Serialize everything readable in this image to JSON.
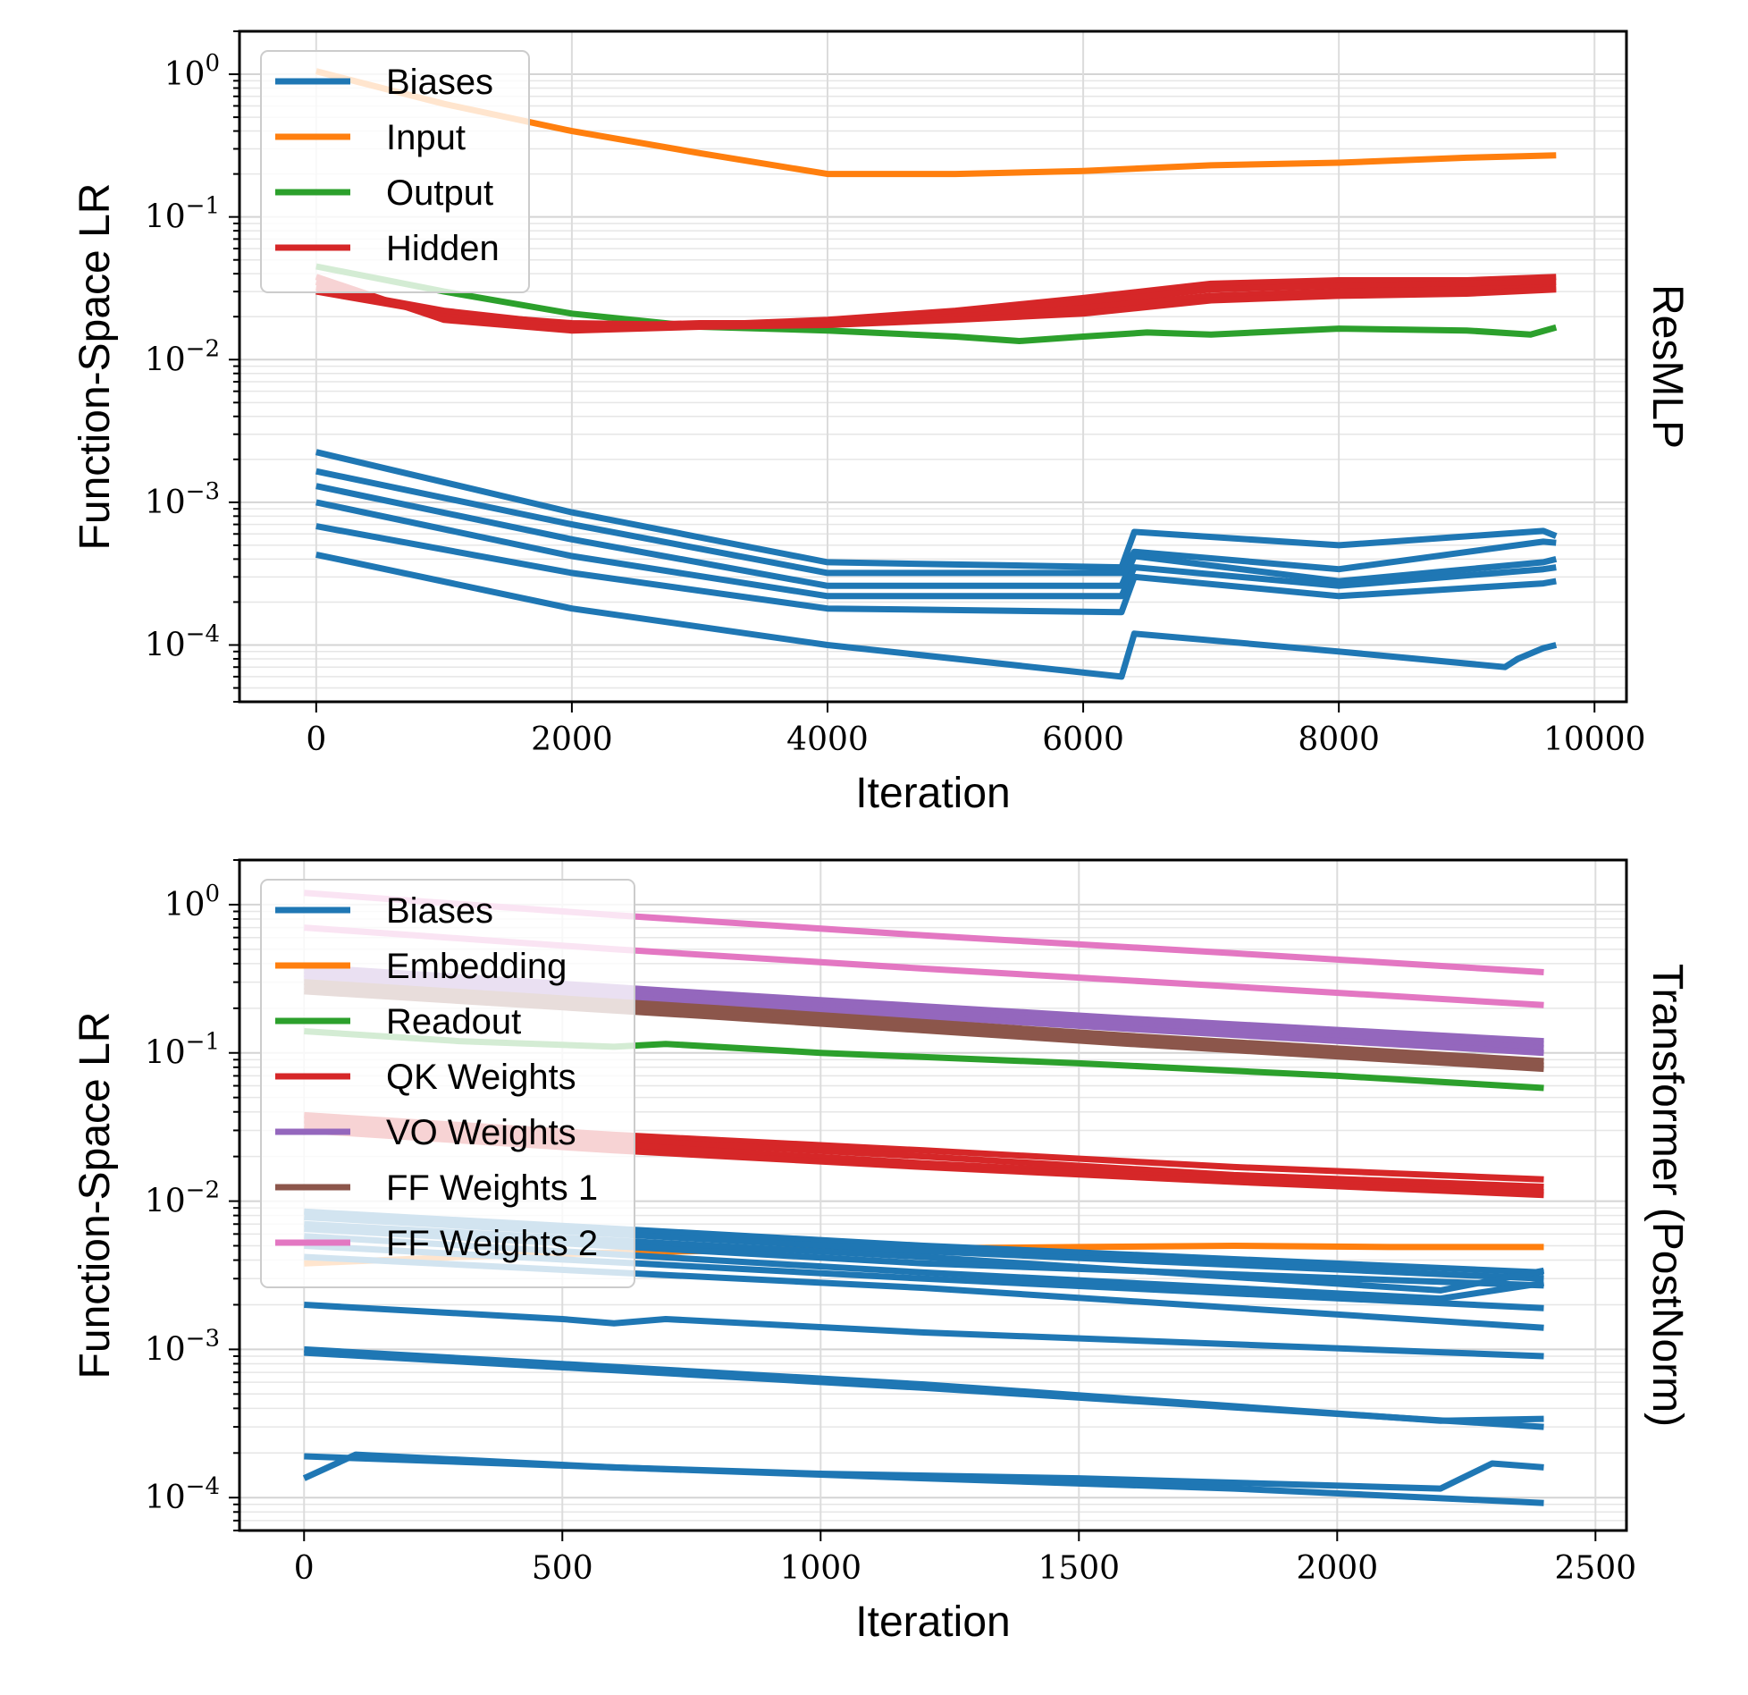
{
  "chart_data": [
    {
      "type": "line",
      "yscale": "log",
      "ylabel": "Function-Space LR",
      "xlabel": "Iteration",
      "side_label": "ResMLP",
      "xlim": [
        -600,
        10250
      ],
      "ylim": [
        4e-05,
        2.0
      ],
      "xticks": [
        0,
        2000,
        4000,
        6000,
        8000,
        10000
      ],
      "xtick_labels": [
        "0",
        "2000",
        "4000",
        "6000",
        "8000",
        "10000"
      ],
      "yticks": [
        1,
        0.1,
        0.01,
        0.001,
        0.0001
      ],
      "ytick_labels": [
        {
          "base": "10",
          "exp": "0"
        },
        {
          "base": "10",
          "exp": "−1"
        },
        {
          "base": "10",
          "exp": "−2"
        },
        {
          "base": "10",
          "exp": "−3"
        },
        {
          "base": "10",
          "exp": "−4"
        }
      ],
      "grid": true,
      "legend_position": "top-left",
      "legend": [
        {
          "label": "Biases",
          "color": "#1f77b4"
        },
        {
          "label": "Input",
          "color": "#ff7f0e"
        },
        {
          "label": "Output",
          "color": "#2ca02c"
        },
        {
          "label": "Hidden",
          "color": "#d62728"
        }
      ],
      "series": [
        {
          "name": "Biases",
          "color": "#1f77b4",
          "x": [
            0,
            2000,
            4000,
            6300,
            6400,
            8000,
            9600,
            9700
          ],
          "y": [
            0.00225,
            0.00085,
            0.00038,
            0.00035,
            0.00062,
            0.0005,
            0.00063,
            0.00058
          ]
        },
        {
          "name": "Biases",
          "color": "#1f77b4",
          "x": [
            0,
            2000,
            4000,
            6300,
            6400,
            8000,
            9600,
            9700
          ],
          "y": [
            0.00165,
            0.0007,
            0.00032,
            0.00032,
            0.00045,
            0.00034,
            0.00053,
            0.00052
          ]
        },
        {
          "name": "Biases",
          "color": "#1f77b4",
          "x": [
            0,
            2000,
            4000,
            6300,
            6400,
            8000,
            9600,
            9700
          ],
          "y": [
            0.0013,
            0.00055,
            0.00026,
            0.00026,
            0.00042,
            0.00028,
            0.00038,
            0.0004
          ]
        },
        {
          "name": "Biases",
          "color": "#1f77b4",
          "x": [
            0,
            2000,
            4000,
            6300,
            6400,
            8000,
            9600,
            9700
          ],
          "y": [
            0.001,
            0.00042,
            0.00022,
            0.00022,
            0.00035,
            0.00026,
            0.00034,
            0.00035
          ]
        },
        {
          "name": "Biases",
          "color": "#1f77b4",
          "x": [
            0,
            2000,
            4000,
            6300,
            6400,
            8000,
            9600,
            9700
          ],
          "y": [
            0.00068,
            0.00032,
            0.00018,
            0.00017,
            0.0003,
            0.00022,
            0.00027,
            0.00028
          ]
        },
        {
          "name": "Biases",
          "color": "#1f77b4",
          "x": [
            0,
            2000,
            4000,
            6300,
            6400,
            8000,
            9300,
            9400,
            9600,
            9700
          ],
          "y": [
            0.00043,
            0.00018,
            0.0001,
            6e-05,
            0.00012,
            9e-05,
            7e-05,
            8e-05,
            9.5e-05,
            0.0001
          ]
        },
        {
          "name": "Input",
          "color": "#ff7f0e",
          "x": [
            0,
            1000,
            2000,
            3000,
            4000,
            5000,
            6000,
            7000,
            8000,
            9000,
            9700
          ],
          "y": [
            1.05,
            0.62,
            0.4,
            0.28,
            0.2,
            0.2,
            0.21,
            0.23,
            0.24,
            0.26,
            0.27
          ]
        },
        {
          "name": "Output",
          "color": "#2ca02c",
          "x": [
            0,
            1000,
            2000,
            3000,
            4000,
            5000,
            5500,
            6000,
            6500,
            7000,
            8000,
            9000,
            9500,
            9700
          ],
          "y": [
            0.045,
            0.03,
            0.021,
            0.017,
            0.016,
            0.0145,
            0.0135,
            0.0145,
            0.0155,
            0.015,
            0.0165,
            0.016,
            0.015,
            0.0168
          ]
        },
        {
          "name": "Hidden",
          "color": "#d62728",
          "x": [
            0,
            1000,
            2000,
            3000,
            4000,
            5000,
            6000,
            7000,
            8000,
            9000,
            9700
          ],
          "y": [
            0.03,
            0.021,
            0.018,
            0.0175,
            0.019,
            0.022,
            0.027,
            0.034,
            0.036,
            0.036,
            0.038
          ]
        },
        {
          "name": "Hidden",
          "color": "#d62728",
          "x": [
            0,
            1000,
            2000,
            3000,
            4000,
            5000,
            6000,
            7000,
            8000,
            9000,
            9700
          ],
          "y": [
            0.032,
            0.022,
            0.0175,
            0.0175,
            0.0185,
            0.021,
            0.025,
            0.031,
            0.033,
            0.034,
            0.035
          ]
        },
        {
          "name": "Hidden",
          "color": "#d62728",
          "x": [
            0,
            1000,
            2000,
            3000,
            4000,
            5000,
            6000,
            7000,
            8000,
            9000,
            9700
          ],
          "y": [
            0.035,
            0.02,
            0.017,
            0.018,
            0.018,
            0.02,
            0.023,
            0.028,
            0.03,
            0.031,
            0.032
          ]
        },
        {
          "name": "Hidden",
          "color": "#d62728",
          "x": [
            0,
            1000,
            2000,
            3000,
            4000,
            5000,
            6000,
            7000,
            8000,
            9000,
            9700
          ],
          "y": [
            0.038,
            0.019,
            0.016,
            0.017,
            0.0175,
            0.019,
            0.021,
            0.026,
            0.028,
            0.029,
            0.031
          ]
        }
      ]
    },
    {
      "type": "line",
      "yscale": "log",
      "ylabel": "Function-Space LR",
      "xlabel": "Iteration",
      "side_label": "Transformer (PostNorm)",
      "xlim": [
        -125,
        2560
      ],
      "ylim": [
        6e-05,
        2.0
      ],
      "xticks": [
        0,
        500,
        1000,
        1500,
        2000,
        2500
      ],
      "xtick_labels": [
        "0",
        "500",
        "1000",
        "1500",
        "2000",
        "2500"
      ],
      "yticks": [
        1,
        0.1,
        0.01,
        0.001,
        0.0001
      ],
      "ytick_labels": [
        {
          "base": "10",
          "exp": "0"
        },
        {
          "base": "10",
          "exp": "−1"
        },
        {
          "base": "10",
          "exp": "−2"
        },
        {
          "base": "10",
          "exp": "−3"
        },
        {
          "base": "10",
          "exp": "−4"
        }
      ],
      "grid": true,
      "legend_position": "top-left",
      "legend": [
        {
          "label": "Biases",
          "color": "#1f77b4"
        },
        {
          "label": "Embedding",
          "color": "#ff7f0e"
        },
        {
          "label": "Readout",
          "color": "#2ca02c"
        },
        {
          "label": "QK Weights",
          "color": "#d62728"
        },
        {
          "label": "VO Weights",
          "color": "#9467bd"
        },
        {
          "label": "FF Weights 1",
          "color": "#8c564b"
        },
        {
          "label": "FF Weights 2",
          "color": "#e377c2"
        }
      ],
      "series": [
        {
          "name": "FF Weights 2",
          "color": "#e377c2",
          "x": [
            0,
            600,
            1200,
            1800,
            2400
          ],
          "y": [
            1.2,
            0.85,
            0.62,
            0.47,
            0.35
          ]
        },
        {
          "name": "FF Weights 2",
          "color": "#e377c2",
          "x": [
            0,
            600,
            1200,
            1800,
            2400
          ],
          "y": [
            0.7,
            0.5,
            0.37,
            0.28,
            0.21
          ]
        },
        {
          "name": "VO Weights",
          "color": "#9467bd",
          "x": [
            0,
            800,
            1600,
            2400
          ],
          "y": [
            0.38,
            0.25,
            0.17,
            0.12
          ]
        },
        {
          "name": "VO Weights",
          "color": "#9467bd",
          "x": [
            0,
            800,
            1600,
            2400
          ],
          "y": [
            0.36,
            0.24,
            0.16,
            0.115
          ]
        },
        {
          "name": "VO Weights",
          "color": "#9467bd",
          "x": [
            0,
            800,
            1600,
            2400
          ],
          "y": [
            0.34,
            0.23,
            0.155,
            0.108
          ]
        },
        {
          "name": "VO Weights",
          "color": "#9467bd",
          "x": [
            0,
            800,
            1600,
            2400
          ],
          "y": [
            0.32,
            0.215,
            0.145,
            0.1
          ]
        },
        {
          "name": "FF Weights 1",
          "color": "#8c564b",
          "x": [
            0,
            800,
            1600,
            2400
          ],
          "y": [
            0.3,
            0.2,
            0.13,
            0.088
          ]
        },
        {
          "name": "FF Weights 1",
          "color": "#8c564b",
          "x": [
            0,
            800,
            1600,
            2400
          ],
          "y": [
            0.28,
            0.185,
            0.122,
            0.082
          ]
        },
        {
          "name": "FF Weights 1",
          "color": "#8c564b",
          "x": [
            0,
            800,
            1600,
            2400
          ],
          "y": [
            0.26,
            0.175,
            0.115,
            0.078
          ]
        },
        {
          "name": "Readout",
          "color": "#2ca02c",
          "x": [
            0,
            300,
            600,
            700,
            1000,
            1500,
            2000,
            2400
          ],
          "y": [
            0.14,
            0.12,
            0.11,
            0.115,
            0.1,
            0.085,
            0.07,
            0.058
          ]
        },
        {
          "name": "QK Weights",
          "color": "#d62728",
          "x": [
            0,
            600,
            1200,
            1800,
            2400
          ],
          "y": [
            0.038,
            0.028,
            0.022,
            0.017,
            0.014
          ]
        },
        {
          "name": "QK Weights",
          "color": "#d62728",
          "x": [
            0,
            600,
            1200,
            1800,
            2400
          ],
          "y": [
            0.035,
            0.026,
            0.02,
            0.015,
            0.0125
          ]
        },
        {
          "name": "QK Weights",
          "color": "#d62728",
          "x": [
            0,
            600,
            1200,
            1800,
            2400
          ],
          "y": [
            0.032,
            0.024,
            0.018,
            0.014,
            0.0115
          ]
        },
        {
          "name": "QK Weights",
          "color": "#d62728",
          "x": [
            0,
            600,
            1200,
            1800,
            2400
          ],
          "y": [
            0.03,
            0.022,
            0.017,
            0.0135,
            0.011
          ]
        },
        {
          "name": "Embedding",
          "color": "#ff7f0e",
          "x": [
            0,
            300,
            600,
            900,
            1200,
            1500,
            1800,
            2100,
            2400
          ],
          "y": [
            0.0038,
            0.0042,
            0.0045,
            0.0047,
            0.0048,
            0.0049,
            0.005,
            0.0049,
            0.0049
          ]
        },
        {
          "name": "Biases",
          "color": "#1f77b4",
          "x": [
            0,
            1200,
            2400
          ],
          "y": [
            0.0085,
            0.005,
            0.0033
          ]
        },
        {
          "name": "Biases",
          "color": "#1f77b4",
          "x": [
            0,
            1200,
            2400
          ],
          "y": [
            0.0078,
            0.0046,
            0.003
          ]
        },
        {
          "name": "Biases",
          "color": "#1f77b4",
          "x": [
            0,
            1200,
            2200,
            2400
          ],
          "y": [
            0.007,
            0.0042,
            0.0025,
            0.0034
          ]
        },
        {
          "name": "Biases",
          "color": "#1f77b4",
          "x": [
            0,
            1200,
            2400
          ],
          "y": [
            0.0065,
            0.0038,
            0.0027
          ]
        },
        {
          "name": "Biases",
          "color": "#1f77b4",
          "x": [
            0,
            1200,
            2200,
            2400
          ],
          "y": [
            0.0058,
            0.0033,
            0.0022,
            0.0028
          ]
        },
        {
          "name": "Biases",
          "color": "#1f77b4",
          "x": [
            0,
            1200,
            2400
          ],
          "y": [
            0.005,
            0.003,
            0.0019
          ]
        },
        {
          "name": "Biases",
          "color": "#1f77b4",
          "x": [
            0,
            1200,
            2400
          ],
          "y": [
            0.0042,
            0.0026,
            0.0014
          ]
        },
        {
          "name": "Biases",
          "color": "#1f77b4",
          "x": [
            0,
            500,
            600,
            700,
            1200,
            2400
          ],
          "y": [
            0.002,
            0.0016,
            0.0015,
            0.0016,
            0.0013,
            0.0009
          ]
        },
        {
          "name": "Biases",
          "color": "#1f77b4",
          "x": [
            0,
            1200,
            2200,
            2400
          ],
          "y": [
            0.001,
            0.00058,
            0.00033,
            0.00034
          ]
        },
        {
          "name": "Biases",
          "color": "#1f77b4",
          "x": [
            0,
            1200,
            2400
          ],
          "y": [
            0.00095,
            0.00055,
            0.0003
          ]
        },
        {
          "name": "Biases",
          "color": "#1f77b4",
          "x": [
            0,
            100,
            600,
            1000,
            1500,
            2200,
            2300,
            2400
          ],
          "y": [
            0.000135,
            0.000195,
            0.00016,
            0.000145,
            0.000135,
            0.000115,
            0.00017,
            0.00016
          ]
        },
        {
          "name": "Biases",
          "color": "#1f77b4",
          "x": [
            0,
            600,
            1200,
            1800,
            2400
          ],
          "y": [
            0.00019,
            0.00016,
            0.000135,
            0.000115,
            9.2e-05
          ]
        }
      ]
    }
  ]
}
